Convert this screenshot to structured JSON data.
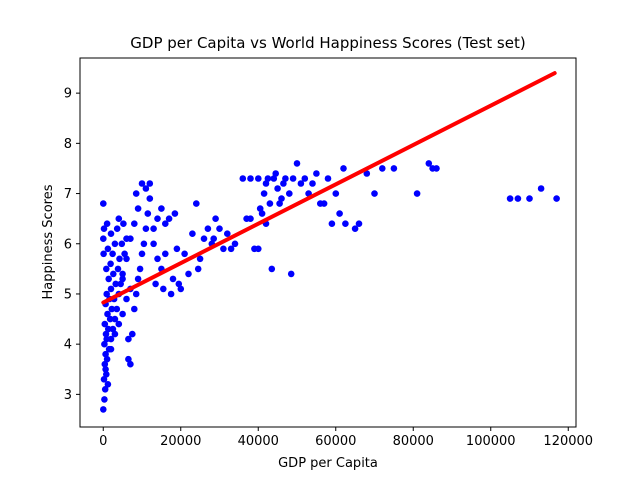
{
  "chart_data": {
    "type": "scatter",
    "title": "GDP per Capita vs World Happiness Scores (Test set)",
    "xlabel": "GDP per Capita",
    "ylabel": "Happiness Scores",
    "xlim": [
      -6000,
      122000
    ],
    "ylim": [
      2.35,
      9.7
    ],
    "xticks": [
      0,
      20000,
      40000,
      60000,
      80000,
      100000,
      120000
    ],
    "yticks": [
      3,
      4,
      5,
      6,
      7,
      8,
      9
    ],
    "grid": false,
    "colors": {
      "points": "#0000ff",
      "trend_line": "#ff0000",
      "axes": "#000000",
      "background": "#ffffff"
    },
    "series": [
      {
        "type": "scatter",
        "points": [
          [
            0,
            2.7
          ],
          [
            300,
            2.9
          ],
          [
            500,
            3.1
          ],
          [
            200,
            3.3
          ],
          [
            800,
            3.4
          ],
          [
            400,
            3.6
          ],
          [
            1000,
            3.7
          ],
          [
            600,
            3.8
          ],
          [
            1500,
            3.9
          ],
          [
            300,
            4.0
          ],
          [
            900,
            4.1
          ],
          [
            2000,
            4.1
          ],
          [
            700,
            4.2
          ],
          [
            1300,
            4.3
          ],
          [
            2500,
            4.3
          ],
          [
            400,
            4.4
          ],
          [
            1800,
            4.5
          ],
          [
            3000,
            4.5
          ],
          [
            1100,
            4.6
          ],
          [
            2200,
            4.7
          ],
          [
            3500,
            4.7
          ],
          [
            600,
            4.8
          ],
          [
            1600,
            4.9
          ],
          [
            2800,
            4.9
          ],
          [
            4000,
            5.0
          ],
          [
            900,
            5.0
          ],
          [
            2000,
            5.1
          ],
          [
            3200,
            5.2
          ],
          [
            4500,
            5.2
          ],
          [
            1400,
            5.3
          ],
          [
            2600,
            5.4
          ],
          [
            5000,
            5.4
          ],
          [
            800,
            5.5
          ],
          [
            3800,
            5.5
          ],
          [
            1900,
            5.6
          ],
          [
            4200,
            5.7
          ],
          [
            2400,
            5.8
          ],
          [
            5500,
            5.8
          ],
          [
            1200,
            5.9
          ],
          [
            3000,
            6.0
          ],
          [
            4800,
            6.0
          ],
          [
            6000,
            6.1
          ],
          [
            2000,
            6.2
          ],
          [
            3600,
            6.3
          ],
          [
            5200,
            6.4
          ],
          [
            1000,
            6.4
          ],
          [
            4000,
            6.5
          ],
          [
            0,
            6.8
          ],
          [
            200,
            6.3
          ],
          [
            100,
            5.8
          ],
          [
            0,
            6.1
          ],
          [
            600,
            3.5
          ],
          [
            1200,
            3.2
          ],
          [
            2000,
            3.9
          ],
          [
            3000,
            4.2
          ],
          [
            4000,
            4.4
          ],
          [
            5000,
            4.6
          ],
          [
            6000,
            4.9
          ],
          [
            7000,
            5.1
          ],
          [
            6500,
            4.1
          ],
          [
            6500,
            3.7
          ],
          [
            7000,
            3.6
          ],
          [
            7500,
            4.2
          ],
          [
            8000,
            4.7
          ],
          [
            8500,
            5.0
          ],
          [
            9000,
            5.3
          ],
          [
            9500,
            5.5
          ],
          [
            10000,
            5.8
          ],
          [
            10500,
            6.0
          ],
          [
            11000,
            6.3
          ],
          [
            11500,
            6.6
          ],
          [
            12000,
            6.9
          ],
          [
            10000,
            7.2
          ],
          [
            11000,
            7.1
          ],
          [
            12000,
            7.2
          ],
          [
            9000,
            6.7
          ],
          [
            8000,
            6.4
          ],
          [
            7000,
            6.1
          ],
          [
            6000,
            5.7
          ],
          [
            5000,
            5.3
          ],
          [
            13000,
            6.0
          ],
          [
            14000,
            5.7
          ],
          [
            15000,
            5.5
          ],
          [
            13500,
            5.2
          ],
          [
            16000,
            6.4
          ],
          [
            17000,
            6.5
          ],
          [
            18000,
            5.3
          ],
          [
            18500,
            6.6
          ],
          [
            19000,
            5.9
          ],
          [
            20000,
            5.1
          ],
          [
            21000,
            5.8
          ],
          [
            22000,
            5.4
          ],
          [
            23000,
            6.2
          ],
          [
            24000,
            6.8
          ],
          [
            25000,
            5.7
          ],
          [
            26000,
            6.1
          ],
          [
            27000,
            6.3
          ],
          [
            28000,
            6.0
          ],
          [
            29000,
            6.5
          ],
          [
            30000,
            6.3
          ],
          [
            31000,
            5.9
          ],
          [
            32000,
            6.2
          ],
          [
            33000,
            5.9
          ],
          [
            34000,
            6.0
          ],
          [
            15000,
            6.7
          ],
          [
            14000,
            6.5
          ],
          [
            13000,
            6.3
          ],
          [
            16000,
            5.8
          ],
          [
            19500,
            5.2
          ],
          [
            24500,
            5.5
          ],
          [
            28500,
            6.1
          ],
          [
            8500,
            7.0
          ],
          [
            37000,
            6.5
          ],
          [
            38000,
            6.5
          ],
          [
            39000,
            5.9
          ],
          [
            40000,
            5.9
          ],
          [
            40500,
            6.7
          ],
          [
            41000,
            6.6
          ],
          [
            41500,
            7.0
          ],
          [
            42000,
            7.2
          ],
          [
            42500,
            7.3
          ],
          [
            43000,
            6.8
          ],
          [
            43500,
            5.5
          ],
          [
            44000,
            7.3
          ],
          [
            45000,
            7.1
          ],
          [
            46000,
            6.9
          ],
          [
            47000,
            7.3
          ],
          [
            48000,
            7.0
          ],
          [
            48500,
            5.4
          ],
          [
            49000,
            7.3
          ],
          [
            50000,
            7.6
          ],
          [
            51000,
            7.2
          ],
          [
            52000,
            7.3
          ],
          [
            53000,
            7.0
          ],
          [
            54000,
            7.2
          ],
          [
            55000,
            7.4
          ],
          [
            56000,
            6.8
          ],
          [
            57000,
            6.8
          ],
          [
            58000,
            7.3
          ],
          [
            59000,
            6.4
          ],
          [
            60000,
            7.0
          ],
          [
            61000,
            6.6
          ],
          [
            62000,
            7.5
          ],
          [
            62500,
            6.4
          ],
          [
            65000,
            6.3
          ],
          [
            66000,
            6.4
          ],
          [
            68000,
            7.4
          ],
          [
            70000,
            7.0
          ],
          [
            72000,
            7.5
          ],
          [
            75000,
            7.5
          ],
          [
            81000,
            7.0
          ],
          [
            84000,
            7.6
          ],
          [
            85000,
            7.5
          ],
          [
            86000,
            7.5
          ],
          [
            105000,
            6.9
          ],
          [
            107000,
            6.9
          ],
          [
            110000,
            6.9
          ],
          [
            113000,
            7.1
          ],
          [
            117000,
            6.9
          ],
          [
            38000,
            7.3
          ],
          [
            40000,
            7.3
          ],
          [
            44500,
            7.4
          ],
          [
            46500,
            7.2
          ],
          [
            36000,
            7.3
          ],
          [
            45500,
            6.8
          ],
          [
            42000,
            6.4
          ],
          [
            17500,
            5.0
          ],
          [
            15500,
            5.1
          ]
        ]
      },
      {
        "type": "line",
        "points": [
          [
            0,
            4.83
          ],
          [
            116500,
            9.4
          ]
        ]
      }
    ]
  }
}
